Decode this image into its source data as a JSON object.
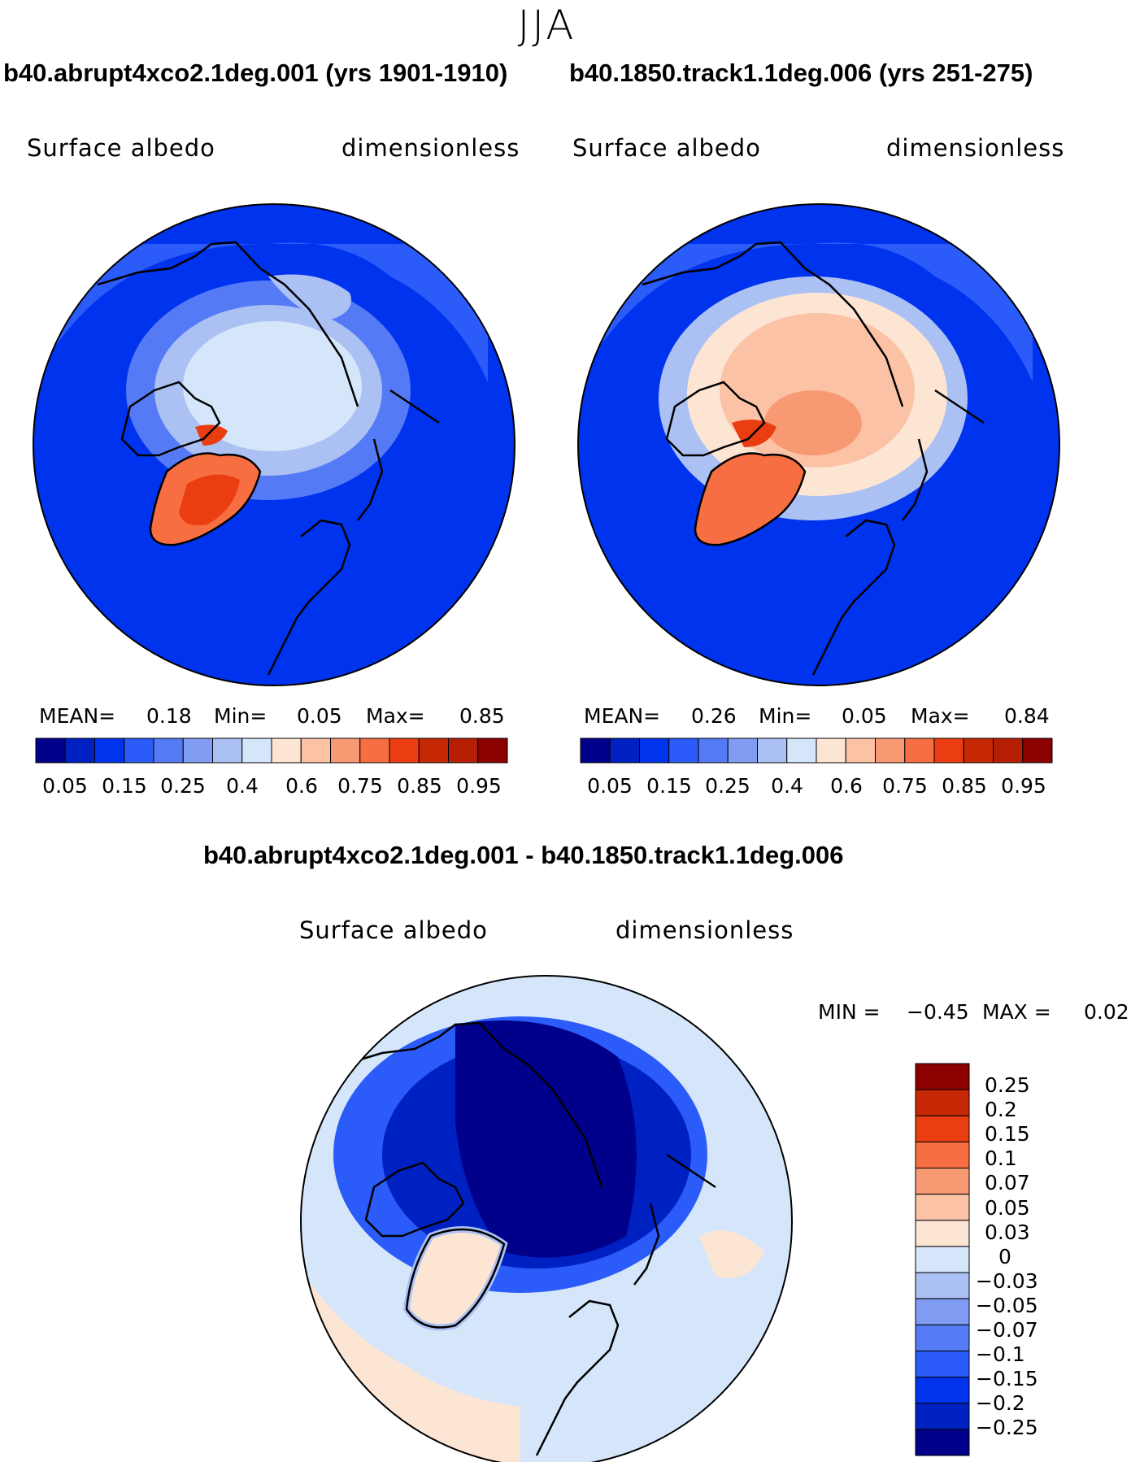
{
  "season": "JJA",
  "colors": {
    "seq": [
      "#00008b",
      "#0021c2",
      "#0033ee",
      "#2b5bf8",
      "#557af5",
      "#809cf3",
      "#abc0f3",
      "#d6e6fa",
      "#fde5d4",
      "#fbc2a6",
      "#f79a73",
      "#f66e41",
      "#ea3d12",
      "#c72805",
      "#b61e04",
      "#8c0000"
    ],
    "diff": [
      "#00008b",
      "#0021c2",
      "#0033ee",
      "#2b5bf8",
      "#557af5",
      "#809cf3",
      "#abc0f3",
      "#d6e6fa",
      "#fde5d4",
      "#fbc2a6",
      "#f79a73",
      "#f66e41",
      "#ea3d12",
      "#c72805",
      "#8c0000"
    ],
    "land_line": "#000000"
  },
  "panels": [
    {
      "title": "b40.abrupt4xco2.1deg.001 (yrs 1901-1910)",
      "variable": "Surface albedo",
      "units": "dimensionless",
      "mean_label": "MEAN=",
      "mean": "0.18",
      "min_label": "Min=",
      "min": "0.05",
      "max_label": "Max=",
      "max": "0.85",
      "ticks": [
        "0.05",
        "0.15",
        "0.25",
        "0.4",
        "0.6",
        "0.75",
        "0.85",
        "0.95"
      ]
    },
    {
      "title": "b40.1850.track1.1deg.006 (yrs 251-275)",
      "variable": "Surface albedo",
      "units": "dimensionless",
      "mean_label": "MEAN=",
      "mean": "0.26",
      "min_label": "Min=",
      "min": "0.05",
      "max_label": "Max=",
      "max": "0.84",
      "ticks": [
        "0.05",
        "0.15",
        "0.25",
        "0.4",
        "0.6",
        "0.75",
        "0.85",
        "0.95"
      ]
    }
  ],
  "diff": {
    "title": "b40.abrupt4xco2.1deg.001 - b40.1850.track1.1deg.006",
    "variable": "Surface albedo",
    "units": "dimensionless",
    "min_label": "MIN =",
    "min": "−0.45",
    "max_label": "MAX =",
    "max": "0.02",
    "ticks": [
      "0.25",
      "0.2",
      "0.15",
      "0.1",
      "0.07",
      "0.05",
      "0.03",
      "0",
      "−0.03",
      "−0.05",
      "−0.07",
      "−0.1",
      "−0.15",
      "−0.2",
      "−0.25"
    ]
  }
}
